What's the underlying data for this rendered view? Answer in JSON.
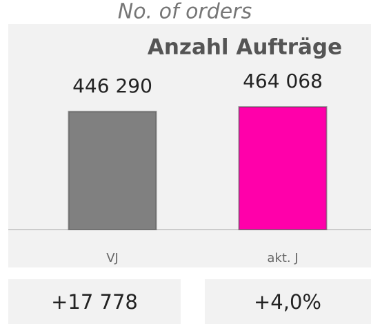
{
  "chart_data": {
    "type": "bar",
    "subtitle": "No. of orders",
    "title": "Anzahl Aufträge",
    "categories": [
      "VJ",
      "akt. J"
    ],
    "values": [
      446290,
      464068
    ],
    "value_labels": [
      "446 290",
      "464 068"
    ],
    "colors": [
      "#808080",
      "#ff00aa"
    ],
    "annotations": [
      "+17 778",
      "+4,0%"
    ]
  }
}
